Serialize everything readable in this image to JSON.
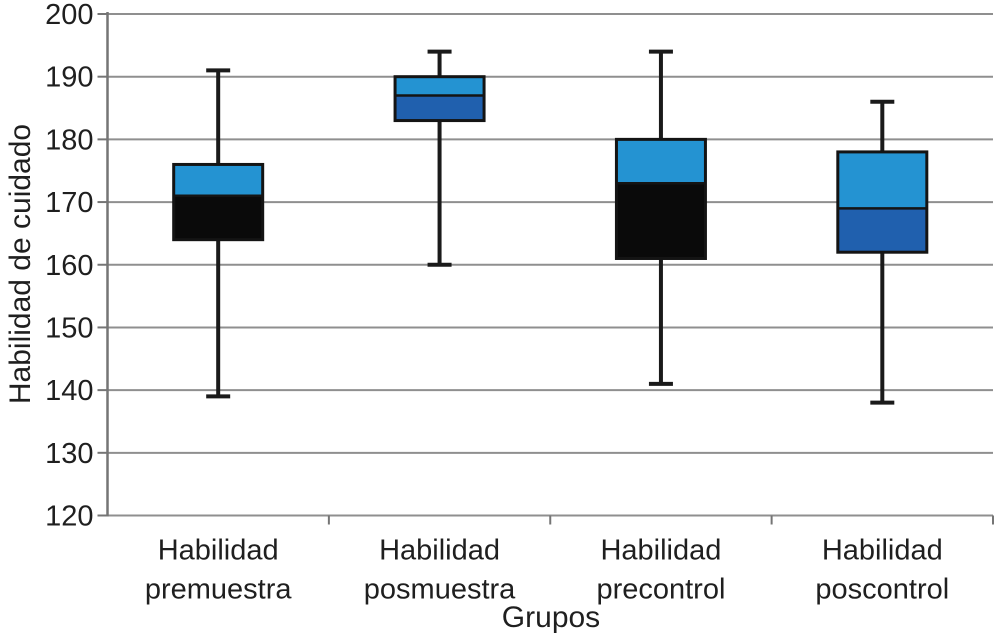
{
  "chart_data": {
    "type": "boxplot",
    "title": "",
    "xlabel": "Grupos",
    "ylabel": "Habilidad de cuidado",
    "ylim": [
      120,
      200
    ],
    "ytick_interval": 10,
    "grid": "horizontal-gridlines-on",
    "legend": "none",
    "boxes": [
      {
        "category_lines": [
          "Habilidad",
          "premuestra"
        ],
        "whisker_low": 139,
        "q1": 164,
        "median": 171,
        "q3": 176,
        "whisker_high": 191,
        "lower_box_color": "#0a0a0a",
        "upper_box_color": "#2493d2"
      },
      {
        "category_lines": [
          "Habilidad",
          "posmuestra"
        ],
        "whisker_low": 160,
        "q1": 183,
        "median": 187,
        "q3": 190,
        "whisker_high": 194,
        "lower_box_color": "#2060ae",
        "upper_box_color": "#2493d2"
      },
      {
        "category_lines": [
          "Habilidad",
          "precontrol"
        ],
        "whisker_low": 141,
        "q1": 161,
        "median": 173,
        "q3": 180,
        "whisker_high": 194,
        "lower_box_color": "#0a0a0a",
        "upper_box_color": "#2493d2"
      },
      {
        "category_lines": [
          "Habilidad",
          "poscontrol"
        ],
        "whisker_low": 138,
        "q1": 162,
        "median": 169,
        "q3": 178,
        "whisker_high": 186,
        "lower_box_color": "#2060ae",
        "upper_box_color": "#2493d2"
      }
    ],
    "colors": {
      "upper_box_light_blue": "#2493d2",
      "lower_box_dark_blue": "#2060ae",
      "lower_box_black": "#0a0a0a",
      "box_border": "#141414",
      "whisker": "#1a1a1a",
      "gridline": "#8f8f8f",
      "axis": "#757575",
      "text": "#1f1f1f",
      "background": "#ffffff"
    }
  }
}
